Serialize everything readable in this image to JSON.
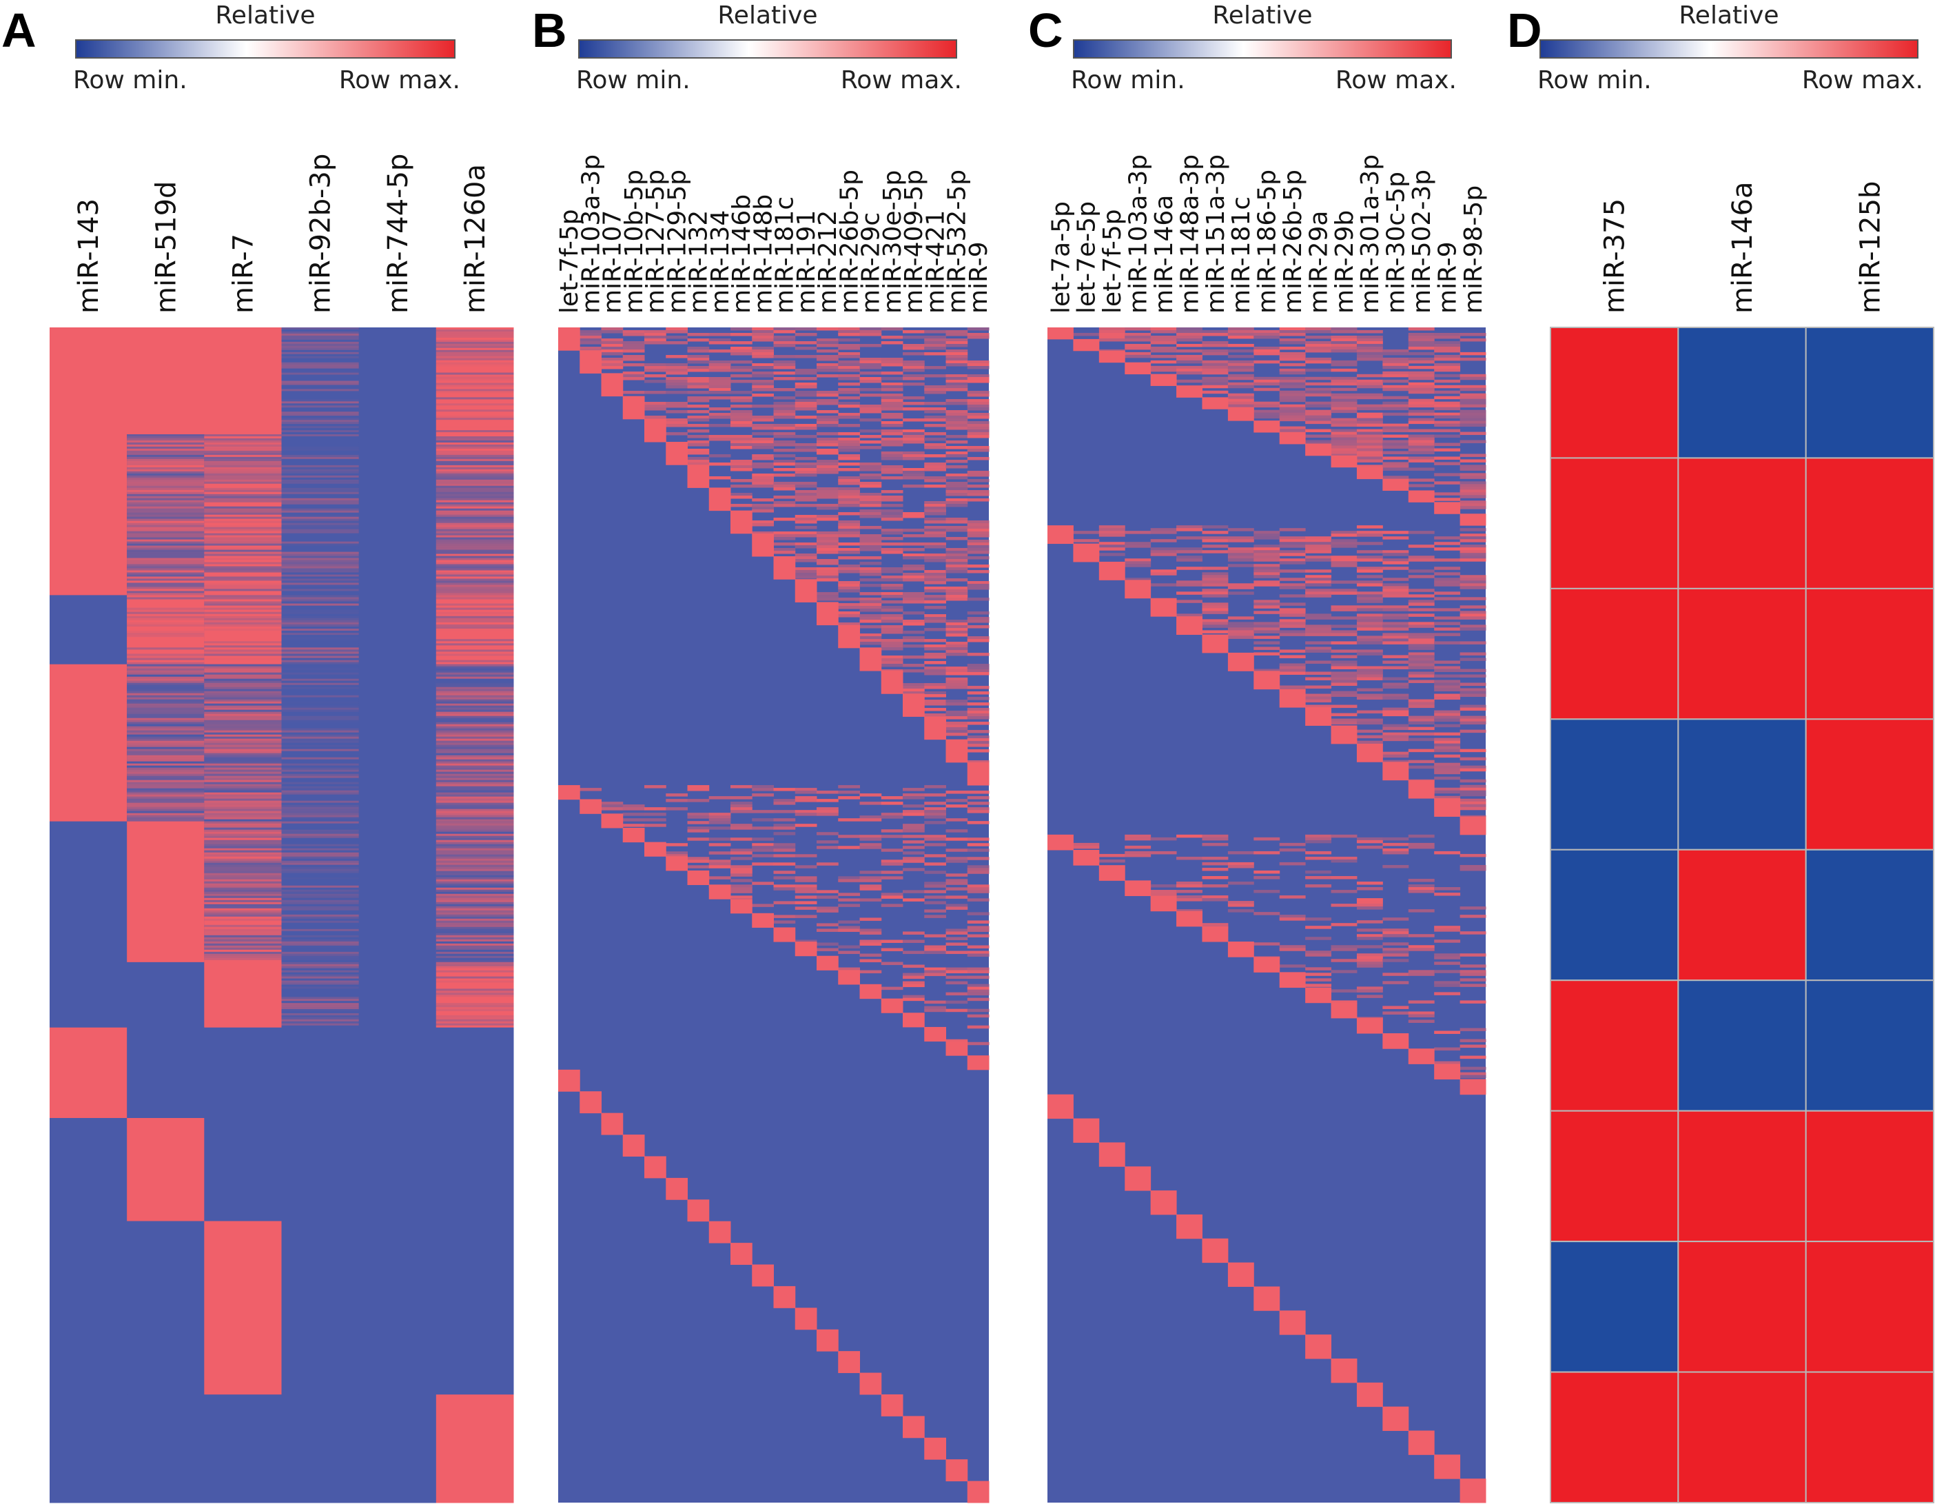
{
  "chart_data": [
    {
      "panel": "A",
      "type": "heatmap",
      "legend": {
        "title": "Relative",
        "min_label": "Row min.",
        "max_label": "Row max."
      },
      "columns": [
        "miR-143",
        "miR-519d",
        "miR-7",
        "miR-92b-3p",
        "miR-744-5p",
        "miR-1260a"
      ],
      "blocks": [
        {
          "rows": 85,
          "pattern": [
            1,
            1,
            1,
            0.05,
            0,
            0.93
          ]
        },
        {
          "rows": 128,
          "pattern": [
            1,
            0.55,
            0.7,
            0.05,
            0,
            0.6
          ]
        },
        {
          "rows": 55,
          "pattern": [
            0,
            0.95,
            0.95,
            0.15,
            0,
            0.92
          ]
        },
        {
          "rows": 125,
          "pattern": [
            1,
            0.35,
            0.45,
            0.03,
            0,
            0.45
          ]
        },
        {
          "rows": 112,
          "pattern": [
            0,
            1,
            0.6,
            0.03,
            0,
            0.4
          ]
        },
        {
          "rows": 52,
          "pattern": [
            0,
            0,
            1,
            0.1,
            0,
            0.95
          ]
        },
        {
          "rows": 72,
          "pattern": [
            1,
            0,
            0,
            0,
            0,
            0
          ]
        },
        {
          "rows": 82,
          "pattern": [
            0,
            1,
            0,
            0,
            0,
            0
          ]
        },
        {
          "rows": 138,
          "pattern": [
            0,
            0,
            1,
            0,
            0,
            0
          ]
        },
        {
          "rows": 86,
          "pattern": [
            0,
            0,
            0,
            0,
            0,
            1
          ]
        }
      ]
    },
    {
      "panel": "B",
      "type": "heatmap",
      "legend": {
        "title": "Relative",
        "min_label": "Row min.",
        "max_label": "Row max."
      },
      "columns": [
        "let-7f-5p",
        "miR-103a-3p",
        "miR-107",
        "miR-10b-5p",
        "miR-127-5p",
        "miR-129-5p",
        "miR-132",
        "miR-134",
        "miR-146b",
        "miR-148b",
        "miR-181c",
        "miR-191",
        "miR-212",
        "miR-26b-5p",
        "miR-29c",
        "miR-30e-5p",
        "miR-409-5p",
        "miR-421",
        "miR-532-5p",
        "miR-9"
      ],
      "tiers": [
        {
          "rows": 370,
          "density": 0.55
        },
        {
          "rows": 230,
          "density": 0.3
        },
        {
          "rows": 350,
          "density": 0.0
        }
      ]
    },
    {
      "panel": "C",
      "type": "heatmap",
      "legend": {
        "title": "Relative",
        "min_label": "Row min.",
        "max_label": "Row max."
      },
      "columns": [
        "let-7a-5p",
        "let-7e-5p",
        "let-7f-5p",
        "miR-103a-3p",
        "miR-146a",
        "miR-148a-3p",
        "miR-151a-3p",
        "miR-181c",
        "miR-186-5p",
        "miR-26b-5p",
        "miR-29a",
        "miR-29b",
        "miR-301a-3p",
        "miR-30c-5p",
        "miR-502-3p",
        "miR-9",
        "miR-98-5p"
      ],
      "tiers": [
        {
          "rows": 160,
          "density": 0.6
        },
        {
          "rows": 250,
          "density": 0.45
        },
        {
          "rows": 210,
          "density": 0.25
        },
        {
          "rows": 330,
          "density": 0.0
        }
      ]
    },
    {
      "panel": "D",
      "type": "heatmap",
      "legend": {
        "title": "Relative",
        "min_label": "Row min.",
        "max_label": "Row max."
      },
      "columns": [
        "miR-375",
        "miR-146a",
        "miR-125b"
      ],
      "matrix": [
        [
          1,
          0,
          0
        ],
        [
          1,
          1,
          1
        ],
        [
          1,
          1,
          1
        ],
        [
          0,
          0,
          1
        ],
        [
          0,
          1,
          0
        ],
        [
          1,
          0,
          0
        ],
        [
          1,
          1,
          1
        ],
        [
          0,
          1,
          1
        ],
        [
          1,
          1,
          1
        ]
      ]
    }
  ],
  "colors": {
    "low": "#4a5aa8",
    "high": "#f0606a",
    "legend_low": "#1f3c96",
    "legend_mid": "#ffffff",
    "legend_high": "#e8252a",
    "panelD_low": "#1f4b9e",
    "panelD_high": "#ec1f27"
  }
}
